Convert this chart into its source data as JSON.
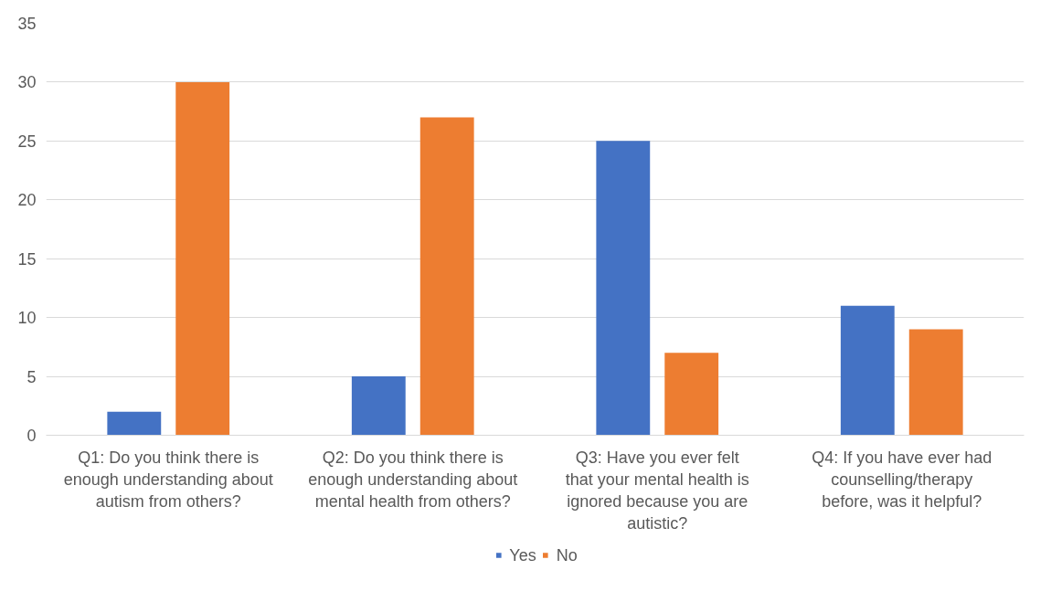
{
  "chart_data": {
    "type": "bar",
    "categories": [
      "Q1: Do you think there is enough understanding about autism from others?",
      "Q2: Do you think there is enough understanding about mental health from others?",
      "Q3: Have you ever felt that your mental health is ignored because you are autistic?",
      "Q4: If you have ever had counselling/therapy before, was it helpful?"
    ],
    "series": [
      {
        "name": "Yes",
        "color": "#4472c4",
        "values": [
          2,
          5,
          25,
          11
        ]
      },
      {
        "name": "No",
        "color": "#ed7d31",
        "values": [
          30,
          27,
          7,
          9
        ]
      }
    ],
    "ylim": [
      0,
      35
    ],
    "yticks": [
      0,
      5,
      10,
      15,
      20,
      25,
      30,
      35
    ],
    "grid": "y",
    "legend": "bottom"
  }
}
